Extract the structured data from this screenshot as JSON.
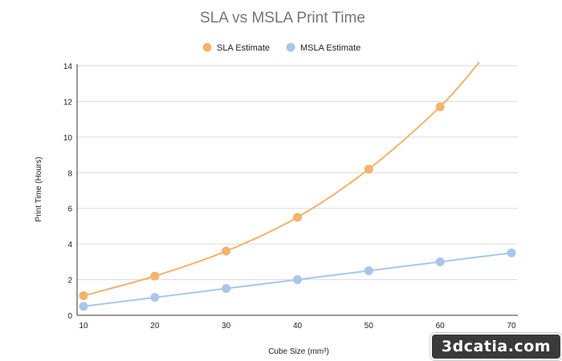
{
  "chart_data": {
    "type": "line",
    "title": "SLA vs MSLA Print Time",
    "xlabel": "Cube Size (mm³)",
    "ylabel": "Print Time (Hours)",
    "x": [
      10,
      20,
      30,
      40,
      50,
      60,
      70
    ],
    "xlim": [
      10,
      70
    ],
    "ylim": [
      0,
      14
    ],
    "xticks": [
      10,
      20,
      30,
      40,
      50,
      60,
      70
    ],
    "yticks": [
      0,
      2,
      4,
      6,
      8,
      10,
      12,
      14
    ],
    "grid": true,
    "legend_position": "top",
    "series": [
      {
        "name": "SLA Estimate",
        "color": "#f3b36b",
        "x": [
          10,
          20,
          30,
          40,
          50,
          60
        ],
        "values": [
          1.1,
          2.2,
          3.6,
          5.5,
          8.2,
          11.7
        ],
        "trend_end": [
          65.5,
          14.2
        ]
      },
      {
        "name": "MSLA Estimate",
        "color": "#a9c6ea",
        "x": [
          10,
          20,
          30,
          40,
          50,
          60,
          70
        ],
        "values": [
          0.5,
          1.0,
          1.5,
          2.0,
          2.5,
          3.0,
          3.5
        ]
      }
    ]
  },
  "watermark": "3dcatia.com"
}
